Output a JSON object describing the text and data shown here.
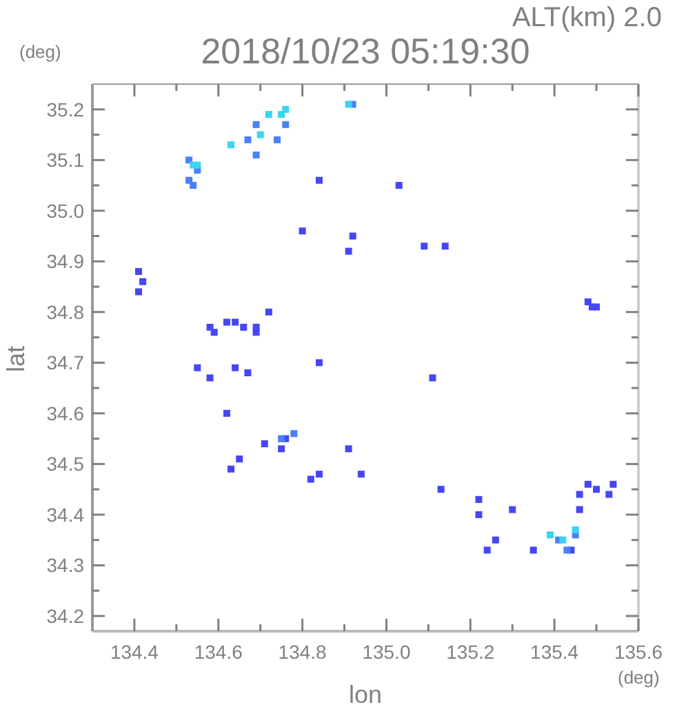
{
  "chart_data": {
    "type": "scatter",
    "title": "2018/10/23 05:19:30",
    "xlabel": "lon",
    "ylabel": "lat",
    "annotations": [
      "ALT(km) 2.0",
      "(deg)",
      "(deg)"
    ],
    "xlim": [
      134.3,
      135.6
    ],
    "ylim": [
      34.17,
      35.25
    ],
    "xticks": [
      134.4,
      {
        "value": 134.5,
        "label": null
      },
      134.6,
      {
        "value": 134.7,
        "label": null
      },
      134.8,
      {
        "value": 134.9,
        "label": null
      },
      {
        "value": 135.0,
        "label": "135.0"
      },
      {
        "value": 135.1,
        "label": null
      },
      135.2,
      {
        "value": 135.3,
        "label": null
      },
      135.4,
      {
        "value": 135.5,
        "label": null
      },
      135.6
    ],
    "yticks": [
      34.2,
      {
        "value": 34.25,
        "label": null
      },
      34.3,
      {
        "value": 34.35,
        "label": null
      },
      34.4,
      {
        "value": 34.45,
        "label": null
      },
      34.5,
      {
        "value": 34.55,
        "label": null
      },
      34.6,
      {
        "value": 34.65,
        "label": null
      },
      34.7,
      {
        "value": 34.75,
        "label": null
      },
      34.8,
      {
        "value": 34.85,
        "label": null
      },
      34.9,
      {
        "value": 34.95,
        "label": null
      },
      {
        "value": 35.0,
        "label": "35.0"
      },
      {
        "value": 35.05,
        "label": null
      },
      35.1,
      {
        "value": 35.15,
        "label": null
      },
      35.2
    ],
    "grid": false,
    "marker": "square",
    "tick_labels": [
      "x",
      "y"
    ],
    "series": [
      {
        "color": "#4646f5",
        "x": [
          134.84,
          135.03,
          134.8,
          134.92,
          134.91,
          135.09,
          134.41,
          134.42,
          134.41,
          134.58,
          134.59,
          134.62,
          134.64,
          134.66,
          134.69,
          134.69,
          134.72,
          135.14,
          134.58,
          134.64,
          134.55,
          134.67,
          134.84,
          135.11,
          134.62,
          134.71,
          134.65,
          134.63,
          134.76,
          134.75,
          134.91,
          134.94,
          134.84,
          134.82,
          135.13,
          135.22,
          135.22,
          135.3,
          135.24,
          135.35,
          135.48,
          135.49,
          135.5,
          135.46,
          135.48,
          135.5,
          135.53,
          135.54,
          135.46,
          135.44,
          135.26
        ],
        "values": [
          35.06,
          35.05,
          34.96,
          34.95,
          34.92,
          34.93,
          34.88,
          34.86,
          34.84,
          34.77,
          34.76,
          34.78,
          34.78,
          34.77,
          34.76,
          34.77,
          34.8,
          34.93,
          34.67,
          34.69,
          34.69,
          34.68,
          34.7,
          34.67,
          34.6,
          34.54,
          34.51,
          34.49,
          34.55,
          34.53,
          34.53,
          34.48,
          34.48,
          34.47,
          34.45,
          34.43,
          34.4,
          34.41,
          34.33,
          34.33,
          34.82,
          34.81,
          34.81,
          34.44,
          34.46,
          34.45,
          34.44,
          34.46,
          34.41,
          34.33,
          34.35
        ]
      },
      {
        "color": "#4a80f8",
        "x": [
          134.53,
          134.55,
          134.54,
          134.53,
          134.76,
          134.69,
          134.74,
          134.69,
          135.41,
          135.45,
          135.43,
          134.78,
          134.75,
          134.92,
          134.67
        ],
        "values": [
          35.1,
          35.08,
          35.05,
          35.06,
          35.17,
          35.17,
          35.14,
          35.11,
          34.35,
          34.36,
          34.33,
          34.56,
          34.55,
          35.21,
          35.14
        ]
      },
      {
        "color": "#3cd4f0",
        "x": [
          134.54,
          134.55,
          134.72,
          134.75,
          134.76,
          134.7,
          134.63,
          135.42,
          135.39,
          135.45,
          134.91
        ],
        "values": [
          35.09,
          35.09,
          35.19,
          35.19,
          35.2,
          35.15,
          35.13,
          34.35,
          34.36,
          34.37,
          35.21
        ]
      }
    ]
  }
}
